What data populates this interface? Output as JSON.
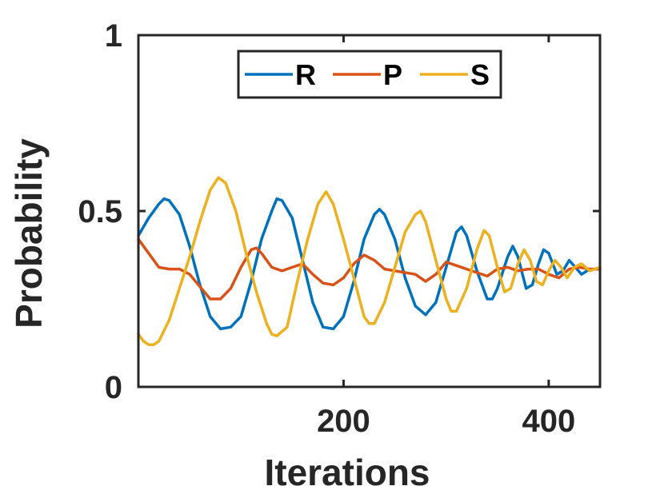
{
  "chart_data": {
    "type": "line",
    "title": "",
    "xlabel": "Iterations",
    "ylabel": "Probability",
    "xlim": [
      0,
      450
    ],
    "ylim": [
      0,
      1
    ],
    "xticks": [
      200,
      400
    ],
    "yticks": [
      0,
      0.5,
      1
    ],
    "xtick_labels": [
      "200",
      "400"
    ],
    "ytick_labels": [
      "0",
      "0.5",
      "1"
    ],
    "grid": false,
    "legend": {
      "placement": "top-center",
      "orientation": "horizontal"
    },
    "series": [
      {
        "name": "R",
        "color": "#0072BD",
        "points": [
          [
            0,
            0.43
          ],
          [
            10,
            0.48
          ],
          [
            20,
            0.52
          ],
          [
            25,
            0.535
          ],
          [
            30,
            0.53
          ],
          [
            40,
            0.49
          ],
          [
            50,
            0.4
          ],
          [
            60,
            0.29
          ],
          [
            70,
            0.2
          ],
          [
            80,
            0.165
          ],
          [
            90,
            0.17
          ],
          [
            100,
            0.2
          ],
          [
            110,
            0.3
          ],
          [
            120,
            0.42
          ],
          [
            130,
            0.5
          ],
          [
            135,
            0.535
          ],
          [
            140,
            0.53
          ],
          [
            150,
            0.48
          ],
          [
            160,
            0.36
          ],
          [
            170,
            0.24
          ],
          [
            180,
            0.17
          ],
          [
            190,
            0.165
          ],
          [
            200,
            0.2
          ],
          [
            210,
            0.3
          ],
          [
            220,
            0.42
          ],
          [
            230,
            0.49
          ],
          [
            235,
            0.505
          ],
          [
            240,
            0.49
          ],
          [
            250,
            0.42
          ],
          [
            260,
            0.31
          ],
          [
            270,
            0.23
          ],
          [
            280,
            0.205
          ],
          [
            290,
            0.24
          ],
          [
            300,
            0.34
          ],
          [
            310,
            0.44
          ],
          [
            315,
            0.455
          ],
          [
            320,
            0.43
          ],
          [
            330,
            0.33
          ],
          [
            340,
            0.25
          ],
          [
            345,
            0.25
          ],
          [
            350,
            0.28
          ],
          [
            360,
            0.37
          ],
          [
            365,
            0.4
          ],
          [
            370,
            0.37
          ],
          [
            378,
            0.28
          ],
          [
            384,
            0.29
          ],
          [
            390,
            0.35
          ],
          [
            395,
            0.39
          ],
          [
            400,
            0.38
          ],
          [
            408,
            0.32
          ],
          [
            414,
            0.33
          ],
          [
            420,
            0.36
          ],
          [
            426,
            0.34
          ],
          [
            432,
            0.32
          ],
          [
            440,
            0.335
          ],
          [
            450,
            0.335
          ]
        ]
      },
      {
        "name": "P",
        "color": "#D95319",
        "points": [
          [
            0,
            0.42
          ],
          [
            10,
            0.38
          ],
          [
            20,
            0.34
          ],
          [
            30,
            0.335
          ],
          [
            40,
            0.335
          ],
          [
            50,
            0.32
          ],
          [
            60,
            0.285
          ],
          [
            70,
            0.25
          ],
          [
            80,
            0.25
          ],
          [
            90,
            0.28
          ],
          [
            100,
            0.34
          ],
          [
            110,
            0.39
          ],
          [
            115,
            0.395
          ],
          [
            120,
            0.38
          ],
          [
            130,
            0.34
          ],
          [
            140,
            0.33
          ],
          [
            150,
            0.34
          ],
          [
            160,
            0.35
          ],
          [
            170,
            0.32
          ],
          [
            180,
            0.295
          ],
          [
            190,
            0.29
          ],
          [
            200,
            0.31
          ],
          [
            210,
            0.35
          ],
          [
            220,
            0.375
          ],
          [
            230,
            0.36
          ],
          [
            240,
            0.335
          ],
          [
            250,
            0.33
          ],
          [
            260,
            0.325
          ],
          [
            270,
            0.32
          ],
          [
            280,
            0.3
          ],
          [
            290,
            0.32
          ],
          [
            300,
            0.355
          ],
          [
            310,
            0.345
          ],
          [
            320,
            0.335
          ],
          [
            330,
            0.325
          ],
          [
            340,
            0.315
          ],
          [
            350,
            0.335
          ],
          [
            360,
            0.34
          ],
          [
            370,
            0.33
          ],
          [
            380,
            0.335
          ],
          [
            390,
            0.335
          ],
          [
            400,
            0.32
          ],
          [
            410,
            0.31
          ],
          [
            420,
            0.335
          ],
          [
            430,
            0.34
          ],
          [
            440,
            0.335
          ],
          [
            450,
            0.335
          ]
        ]
      },
      {
        "name": "S",
        "color": "#EDB120",
        "points": [
          [
            0,
            0.15
          ],
          [
            5,
            0.13
          ],
          [
            10,
            0.12
          ],
          [
            15,
            0.12
          ],
          [
            20,
            0.13
          ],
          [
            30,
            0.19
          ],
          [
            40,
            0.28
          ],
          [
            50,
            0.37
          ],
          [
            60,
            0.47
          ],
          [
            70,
            0.56
          ],
          [
            78,
            0.595
          ],
          [
            85,
            0.58
          ],
          [
            95,
            0.5
          ],
          [
            105,
            0.38
          ],
          [
            115,
            0.27
          ],
          [
            125,
            0.18
          ],
          [
            130,
            0.15
          ],
          [
            135,
            0.145
          ],
          [
            145,
            0.17
          ],
          [
            155,
            0.3
          ],
          [
            165,
            0.42
          ],
          [
            175,
            0.52
          ],
          [
            183,
            0.555
          ],
          [
            190,
            0.52
          ],
          [
            200,
            0.42
          ],
          [
            210,
            0.31
          ],
          [
            220,
            0.2
          ],
          [
            225,
            0.18
          ],
          [
            230,
            0.18
          ],
          [
            240,
            0.24
          ],
          [
            250,
            0.34
          ],
          [
            260,
            0.44
          ],
          [
            270,
            0.49
          ],
          [
            275,
            0.5
          ],
          [
            280,
            0.47
          ],
          [
            290,
            0.36
          ],
          [
            300,
            0.25
          ],
          [
            305,
            0.215
          ],
          [
            310,
            0.215
          ],
          [
            320,
            0.28
          ],
          [
            330,
            0.39
          ],
          [
            337,
            0.445
          ],
          [
            342,
            0.43
          ],
          [
            350,
            0.34
          ],
          [
            357,
            0.27
          ],
          [
            363,
            0.28
          ],
          [
            370,
            0.35
          ],
          [
            376,
            0.39
          ],
          [
            382,
            0.36
          ],
          [
            388,
            0.3
          ],
          [
            394,
            0.29
          ],
          [
            400,
            0.33
          ],
          [
            406,
            0.36
          ],
          [
            412,
            0.34
          ],
          [
            418,
            0.31
          ],
          [
            425,
            0.34
          ],
          [
            432,
            0.35
          ],
          [
            440,
            0.33
          ],
          [
            450,
            0.34
          ]
        ]
      }
    ]
  }
}
